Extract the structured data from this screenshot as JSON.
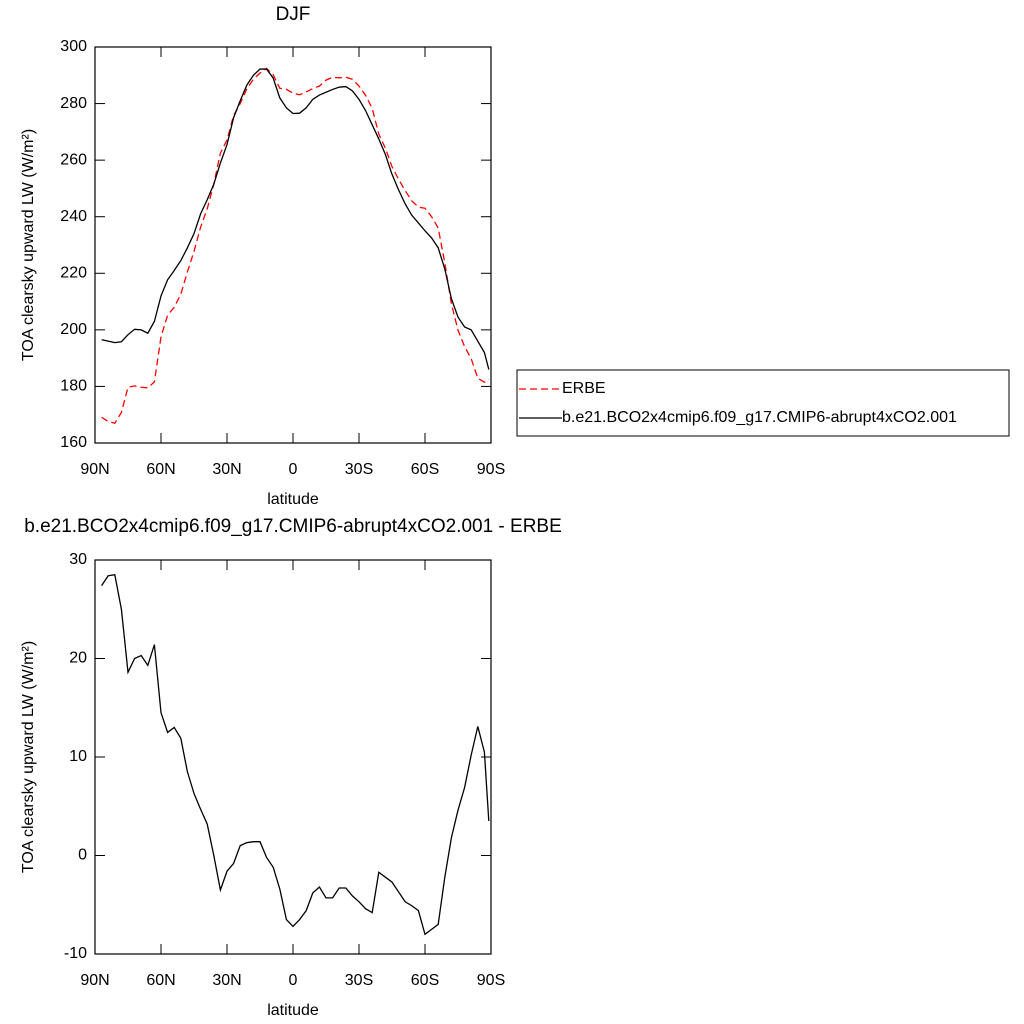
{
  "chart_data": [
    {
      "type": "line",
      "title": "DJF",
      "x_label": "latitude",
      "y_label": "TOA clearsky upward LW (W/m²)",
      "x": [
        87,
        84,
        81,
        78,
        75,
        72,
        69,
        66,
        63,
        60,
        57,
        54,
        51,
        48,
        45,
        42,
        39,
        36,
        33,
        30,
        27,
        24,
        21,
        18,
        15,
        12,
        9,
        6,
        3,
        0,
        -3,
        -6,
        -9,
        -12,
        -15,
        -18,
        -21,
        -24,
        -27,
        -30,
        -33,
        -36,
        -39,
        -42,
        -45,
        -48,
        -51,
        -54,
        -57,
        -60,
        -63,
        -66,
        -69,
        -72,
        -75,
        -78,
        -81,
        -84,
        -87,
        -89
      ],
      "series": [
        {
          "name": "ERBE",
          "color": "#ff0000",
          "dash": true,
          "values": [
            169.1,
            167.6,
            167.0,
            170.8,
            179.7,
            180.2,
            179.7,
            179.5,
            181.6,
            197.5,
            205.2,
            208,
            212.6,
            220.5,
            227.7,
            236.3,
            242.8,
            251.5,
            262.5,
            267.1,
            275.8,
            280,
            285.2,
            288.6,
            290.8,
            292.4,
            290.2,
            285.4,
            285,
            283.7,
            283.1,
            284.1,
            285.3,
            286.2,
            288.3,
            289.3,
            289.1,
            289.3,
            288.6,
            286.2,
            282.9,
            278.3,
            269.2,
            264.2,
            257.7,
            253.2,
            249.2,
            245.6,
            243.4,
            243,
            240,
            236,
            223.7,
            209.2,
            199.9,
            194.1,
            189.8,
            182.9,
            181.5,
            182.5
          ]
        },
        {
          "name": "b.e21.BCO2x4cmip6.f09_g17.CMIP6-abrupt4xCO2.001",
          "color": "#000000",
          "dash": false,
          "values": [
            196.5,
            196,
            195.5,
            195.8,
            198.3,
            200.2,
            200,
            198.8,
            203,
            212,
            217.7,
            221,
            224.5,
            229,
            234,
            241,
            246,
            251.5,
            259,
            265.5,
            275,
            281,
            286.5,
            290,
            292.2,
            292.2,
            289,
            282,
            278.5,
            276.5,
            276.6,
            278.5,
            281.5,
            283,
            284,
            285,
            285.8,
            286,
            284.5,
            281.5,
            277.5,
            272.5,
            267.5,
            262,
            255,
            249.5,
            244.5,
            240.5,
            237.8,
            235,
            232.5,
            229,
            221.5,
            211,
            204.5,
            201,
            200,
            196,
            192,
            186
          ]
        }
      ],
      "xlim": [
        90,
        -90
      ],
      "xticks": [
        {
          "value": 90,
          "label": "90N"
        },
        {
          "value": 60,
          "label": "60N"
        },
        {
          "value": 30,
          "label": "30N"
        },
        0,
        {
          "value": -30,
          "label": "30S"
        },
        {
          "value": -60,
          "label": "60S"
        },
        {
          "value": -90,
          "label": "90S"
        }
      ],
      "ylim": [
        160,
        300
      ],
      "yticks": [
        160,
        180,
        200,
        220,
        240,
        260,
        280,
        300
      ],
      "legend": "right"
    },
    {
      "type": "line",
      "title": "b.e21.BCO2x4cmip6.f09_g17.CMIP6-abrupt4xCO2.001 - ERBE",
      "x_label": "latitude",
      "y_label": "TOA clearsky upward LW (W/m²)",
      "x": [
        87,
        84,
        81,
        78,
        75,
        72,
        69,
        66,
        63,
        60,
        57,
        54,
        51,
        48,
        45,
        42,
        39,
        36,
        33,
        30,
        27,
        24,
        21,
        18,
        15,
        12,
        9,
        6,
        3,
        0,
        -3,
        -6,
        -9,
        -12,
        -15,
        -18,
        -21,
        -24,
        -27,
        -30,
        -33,
        -36,
        -39,
        -42,
        -45,
        -48,
        -51,
        -54,
        -57,
        -60,
        -63,
        -66,
        -69,
        -72,
        -75,
        -78,
        -81,
        -84,
        -87,
        -89
      ],
      "series": [
        {
          "color": "#000000",
          "dash": false,
          "values": [
            27.4,
            28.4,
            28.5,
            25,
            18.6,
            20,
            20.3,
            19.3,
            21.4,
            14.5,
            12.5,
            13.0,
            11.9,
            8.5,
            6.3,
            4.7,
            3.2,
            0,
            -3.5,
            -1.6,
            -0.8,
            1.0,
            1.3,
            1.4,
            1.4,
            -0.2,
            -1.2,
            -3.4,
            -6.5,
            -7.2,
            -6.5,
            -5.6,
            -3.8,
            -3.2,
            -4.3,
            -4.3,
            -3.3,
            -3.3,
            -4.1,
            -4.7,
            -5.4,
            -5.8,
            -1.7,
            -2.2,
            -2.7,
            -3.7,
            -4.7,
            -5.1,
            -5.6,
            -8.0,
            -7.5,
            -7.0,
            -2.2,
            1.8,
            4.6,
            6.9,
            10.2,
            13.1,
            10.5,
            3.5
          ]
        }
      ],
      "xlim": [
        90,
        -90
      ],
      "xticks": [
        {
          "value": 90,
          "label": "90N"
        },
        {
          "value": 60,
          "label": "60N"
        },
        {
          "value": 30,
          "label": "30N"
        },
        0,
        {
          "value": -30,
          "label": "30S"
        },
        {
          "value": -60,
          "label": "60S"
        },
        {
          "value": -90,
          "label": "90S"
        }
      ],
      "ylim": [
        -10,
        30
      ],
      "yticks": [
        -10,
        0,
        10,
        20,
        30
      ]
    }
  ]
}
